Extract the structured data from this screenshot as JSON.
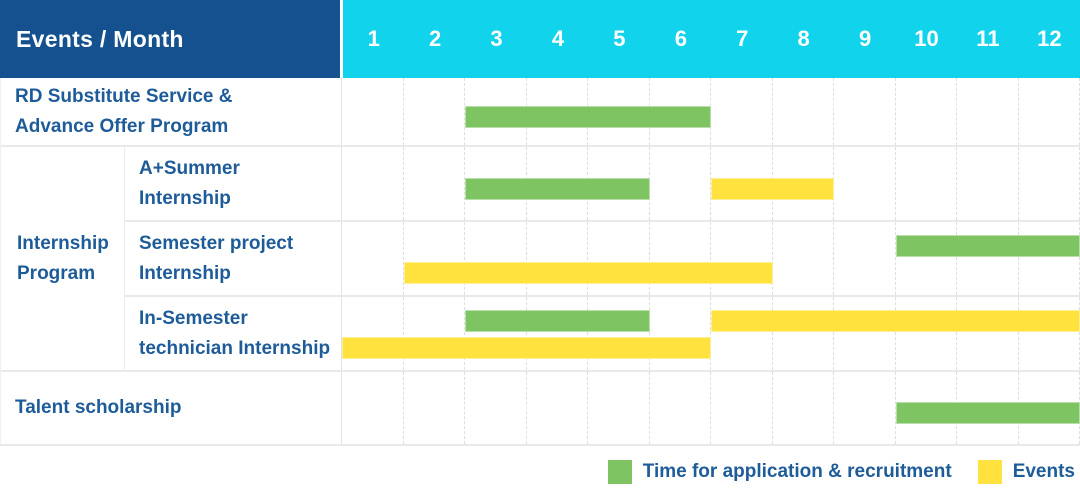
{
  "ui": {
    "corner_label": "Events / Month",
    "months": [
      "1",
      "2",
      "3",
      "4",
      "5",
      "6",
      "7",
      "8",
      "9",
      "10",
      "11",
      "12"
    ],
    "row_labels": {
      "rd": "RD Substitute Service &\nAdvance Offer Program",
      "group": "Internship\nProgram",
      "a_summer": "A+Summer\nInternship",
      "semester_project": "Semester project\nInternship",
      "in_semester": "In-Semester\ntechnician Internship",
      "talent": "Talent scholarship"
    },
    "colors": {
      "header_bg": "#15518f",
      "month_bg": "#12d3ec",
      "label_text": "#1e5c99",
      "green": "#7fc463",
      "yellow": "#ffe23d"
    }
  },
  "chart_data": {
    "type": "bar",
    "subtype": "gantt",
    "title": "Events / Month",
    "x_axis": {
      "label": "Month",
      "ticks": [
        "1",
        "2",
        "3",
        "4",
        "5",
        "6",
        "7",
        "8",
        "9",
        "10",
        "11",
        "12"
      ],
      "range": [
        1,
        12
      ]
    },
    "grid": "dashed-vertical",
    "legend_position": "bottom-right",
    "legend": [
      {
        "label": "Time for application & recruitment",
        "color": "#7fc463"
      },
      {
        "label": "Events",
        "color": "#ffe23d"
      }
    ],
    "rows": [
      {
        "group": null,
        "label": "RD Substitute Service & Advance Offer Program",
        "lanes": 1,
        "bars": [
          {
            "series": "Time for application & recruitment",
            "start_month": 3,
            "end_month": 6,
            "lane": 0
          }
        ]
      },
      {
        "group": "Internship Program",
        "label": "A+Summer Internship",
        "lanes": 1,
        "bars": [
          {
            "series": "Time for application & recruitment",
            "start_month": 3,
            "end_month": 5,
            "lane": 0
          },
          {
            "series": "Events",
            "start_month": 7,
            "end_month": 8,
            "lane": 0
          }
        ]
      },
      {
        "group": "Internship Program",
        "label": "Semester project Internship",
        "lanes": 2,
        "bars": [
          {
            "series": "Time for application & recruitment",
            "start_month": 10,
            "end_month": 12,
            "lane": 0
          },
          {
            "series": "Events",
            "start_month": 2,
            "end_month": 7,
            "lane": 1
          }
        ]
      },
      {
        "group": "Internship Program",
        "label": "In-Semester technician Internship",
        "lanes": 2,
        "bars": [
          {
            "series": "Time for application & recruitment",
            "start_month": 3,
            "end_month": 5,
            "lane": 0
          },
          {
            "series": "Events",
            "start_month": 7,
            "end_month": 12,
            "lane": 0
          },
          {
            "series": "Events",
            "start_month": 1,
            "end_month": 6,
            "lane": 1
          }
        ]
      },
      {
        "group": null,
        "label": "Talent scholarship",
        "lanes": 1,
        "bars": [
          {
            "series": "Time for application & recruitment",
            "start_month": 10,
            "end_month": 12,
            "lane": 0
          }
        ]
      }
    ]
  }
}
